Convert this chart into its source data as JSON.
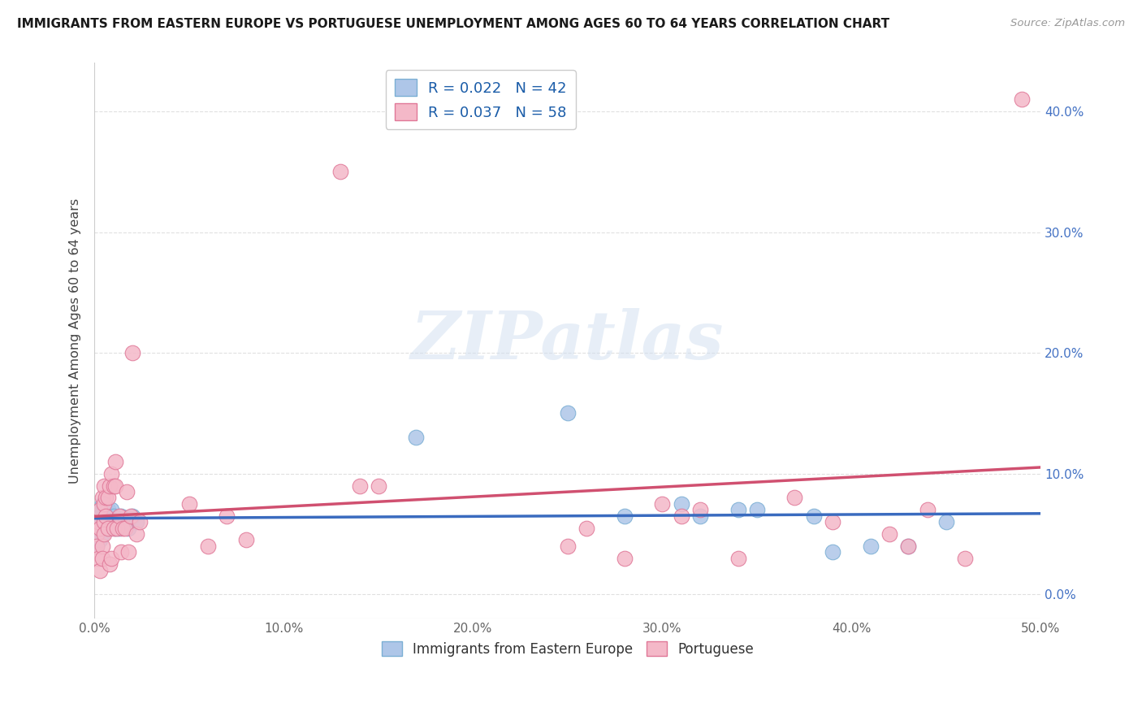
{
  "title": "IMMIGRANTS FROM EASTERN EUROPE VS PORTUGUESE UNEMPLOYMENT AMONG AGES 60 TO 64 YEARS CORRELATION CHART",
  "source": "Source: ZipAtlas.com",
  "ylabel": "Unemployment Among Ages 60 to 64 years",
  "xlim": [
    0,
    0.5
  ],
  "ylim": [
    -0.02,
    0.44
  ],
  "xticks": [
    0.0,
    0.1,
    0.2,
    0.3,
    0.4,
    0.5
  ],
  "xticklabels": [
    "0.0%",
    "10.0%",
    "20.0%",
    "30.0%",
    "40.0%",
    "50.0%"
  ],
  "yticks": [
    0.0,
    0.1,
    0.2,
    0.3,
    0.4
  ],
  "right_ytick_labels": [
    "0.0%",
    "10.0%",
    "20.0%",
    "30.0%",
    "40.0%"
  ],
  "blue_color": "#aec6e8",
  "pink_color": "#f4b8c8",
  "blue_edge": "#7bafd4",
  "pink_edge": "#e07898",
  "trend_blue": "#3a6bbf",
  "trend_pink": "#d05070",
  "R_blue": 0.022,
  "N_blue": 42,
  "R_pink": 0.037,
  "N_pink": 58,
  "watermark": "ZIPatlas",
  "blue_scatter_x": [
    0.001,
    0.001,
    0.002,
    0.002,
    0.003,
    0.003,
    0.003,
    0.004,
    0.004,
    0.004,
    0.005,
    0.005,
    0.005,
    0.006,
    0.006,
    0.007,
    0.007,
    0.008,
    0.008,
    0.009,
    0.009,
    0.01,
    0.011,
    0.012,
    0.013,
    0.014,
    0.016,
    0.018,
    0.02,
    0.022,
    0.17,
    0.25,
    0.28,
    0.31,
    0.32,
    0.34,
    0.35,
    0.38,
    0.39,
    0.41,
    0.43,
    0.45
  ],
  "blue_scatter_y": [
    0.04,
    0.06,
    0.05,
    0.055,
    0.045,
    0.06,
    0.065,
    0.05,
    0.07,
    0.075,
    0.055,
    0.065,
    0.07,
    0.06,
    0.07,
    0.065,
    0.07,
    0.055,
    0.065,
    0.06,
    0.07,
    0.065,
    0.055,
    0.06,
    0.055,
    0.065,
    0.06,
    0.055,
    0.065,
    0.06,
    0.13,
    0.15,
    0.065,
    0.075,
    0.065,
    0.07,
    0.07,
    0.065,
    0.035,
    0.04,
    0.04,
    0.06
  ],
  "pink_scatter_x": [
    0.001,
    0.001,
    0.002,
    0.002,
    0.003,
    0.003,
    0.003,
    0.004,
    0.004,
    0.004,
    0.005,
    0.005,
    0.005,
    0.005,
    0.006,
    0.006,
    0.007,
    0.007,
    0.008,
    0.008,
    0.009,
    0.009,
    0.01,
    0.01,
    0.011,
    0.011,
    0.012,
    0.013,
    0.014,
    0.015,
    0.016,
    0.017,
    0.018,
    0.019,
    0.02,
    0.022,
    0.024,
    0.05,
    0.06,
    0.07,
    0.08,
    0.13,
    0.14,
    0.15,
    0.25,
    0.26,
    0.28,
    0.3,
    0.31,
    0.32,
    0.34,
    0.37,
    0.39,
    0.42,
    0.43,
    0.44,
    0.46,
    0.49
  ],
  "pink_scatter_y": [
    0.05,
    0.04,
    0.06,
    0.03,
    0.055,
    0.07,
    0.02,
    0.04,
    0.03,
    0.08,
    0.06,
    0.075,
    0.09,
    0.05,
    0.08,
    0.065,
    0.055,
    0.08,
    0.09,
    0.025,
    0.03,
    0.1,
    0.055,
    0.09,
    0.09,
    0.11,
    0.055,
    0.065,
    0.035,
    0.055,
    0.055,
    0.085,
    0.035,
    0.065,
    0.2,
    0.05,
    0.06,
    0.075,
    0.04,
    0.065,
    0.045,
    0.35,
    0.09,
    0.09,
    0.04,
    0.055,
    0.03,
    0.075,
    0.065,
    0.07,
    0.03,
    0.08,
    0.06,
    0.05,
    0.04,
    0.07,
    0.03,
    0.41
  ],
  "background_color": "#ffffff",
  "grid_color": "#cccccc"
}
